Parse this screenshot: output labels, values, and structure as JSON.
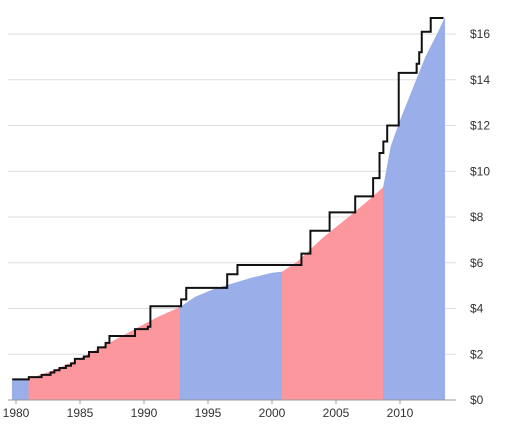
{
  "chart_data": {
    "type": "area",
    "xlim": [
      1979.7,
      2014.0
    ],
    "ylim": [
      0,
      17
    ],
    "grid": true,
    "x_ticks": [
      {
        "value": 1980,
        "label": "1980"
      },
      {
        "value": 1985,
        "label": "1985"
      },
      {
        "value": 1990,
        "label": "1990"
      },
      {
        "value": 1995,
        "label": "1995"
      },
      {
        "value": 2000,
        "label": "2000"
      },
      {
        "value": 2005,
        "label": "2005"
      },
      {
        "value": 2010,
        "label": "2010"
      }
    ],
    "y_ticks": [
      {
        "value": 0,
        "label": "$0"
      },
      {
        "value": 2,
        "label": "$2"
      },
      {
        "value": 4,
        "label": "$4"
      },
      {
        "value": 6,
        "label": "$6"
      },
      {
        "value": 8,
        "label": "$8"
      },
      {
        "value": 10,
        "label": "$10"
      },
      {
        "value": 12,
        "label": "$12"
      },
      {
        "value": 14,
        "label": "$14"
      },
      {
        "value": 16,
        "label": "$16"
      }
    ],
    "area_series": {
      "points": [
        [
          1979.7,
          0.85
        ],
        [
          1981.0,
          0.92
        ],
        [
          1983.0,
          1.3
        ],
        [
          1985.0,
          1.8
        ],
        [
          1987.0,
          2.4
        ],
        [
          1989.0,
          3.0
        ],
        [
          1991.0,
          3.6
        ],
        [
          1992.8,
          4.05
        ],
        [
          1994.0,
          4.5
        ],
        [
          1995.5,
          4.85
        ],
        [
          1997.0,
          5.1
        ],
        [
          1998.5,
          5.35
        ],
        [
          2000.0,
          5.55
        ],
        [
          2000.8,
          5.6
        ],
        [
          2002.0,
          6.05
        ],
        [
          2004.0,
          7.1
        ],
        [
          2006.0,
          8.0
        ],
        [
          2007.5,
          8.7
        ],
        [
          2008.7,
          9.3
        ],
        [
          2009.3,
          11.1
        ],
        [
          2010.0,
          12.2
        ],
        [
          2011.0,
          13.6
        ],
        [
          2012.0,
          15.0
        ],
        [
          2013.0,
          16.1
        ],
        [
          2013.5,
          16.7
        ]
      ],
      "periods": [
        {
          "start": 1979.7,
          "end": 1981.0,
          "color": "#9aaeea"
        },
        {
          "start": 1981.0,
          "end": 1992.8,
          "color": "#fc979d"
        },
        {
          "start": 1992.8,
          "end": 2000.8,
          "color": "#9aaeea"
        },
        {
          "start": 2000.8,
          "end": 2008.7,
          "color": "#fc979d"
        },
        {
          "start": 2008.7,
          "end": 2013.5,
          "color": "#9aaeea"
        }
      ]
    },
    "step_series": {
      "color": "#111111",
      "points": [
        [
          1979.7,
          0.9
        ],
        [
          1981.0,
          1.0
        ],
        [
          1982.0,
          1.1
        ],
        [
          1982.7,
          1.2
        ],
        [
          1983.0,
          1.3
        ],
        [
          1983.4,
          1.4
        ],
        [
          1983.9,
          1.5
        ],
        [
          1984.3,
          1.6
        ],
        [
          1984.6,
          1.8
        ],
        [
          1985.3,
          1.9
        ],
        [
          1985.7,
          2.1
        ],
        [
          1986.4,
          2.3
        ],
        [
          1987.0,
          2.5
        ],
        [
          1987.3,
          2.8
        ],
        [
          1989.3,
          3.1
        ],
        [
          1990.3,
          3.2
        ],
        [
          1990.5,
          4.1
        ],
        [
          1992.9,
          4.4
        ],
        [
          1993.3,
          4.9
        ],
        [
          1996.5,
          5.5
        ],
        [
          1997.3,
          5.9
        ],
        [
          2002.3,
          6.4
        ],
        [
          2003.0,
          7.4
        ],
        [
          2004.5,
          8.2
        ],
        [
          2006.5,
          8.9
        ],
        [
          2007.9,
          9.7
        ],
        [
          2008.4,
          10.8
        ],
        [
          2008.7,
          11.3
        ],
        [
          2009.0,
          12.0
        ],
        [
          2009.9,
          14.3
        ],
        [
          2011.3,
          14.7
        ],
        [
          2011.5,
          15.2
        ],
        [
          2011.7,
          16.1
        ],
        [
          2012.4,
          16.7
        ],
        [
          2013.4,
          16.7
        ]
      ]
    }
  }
}
